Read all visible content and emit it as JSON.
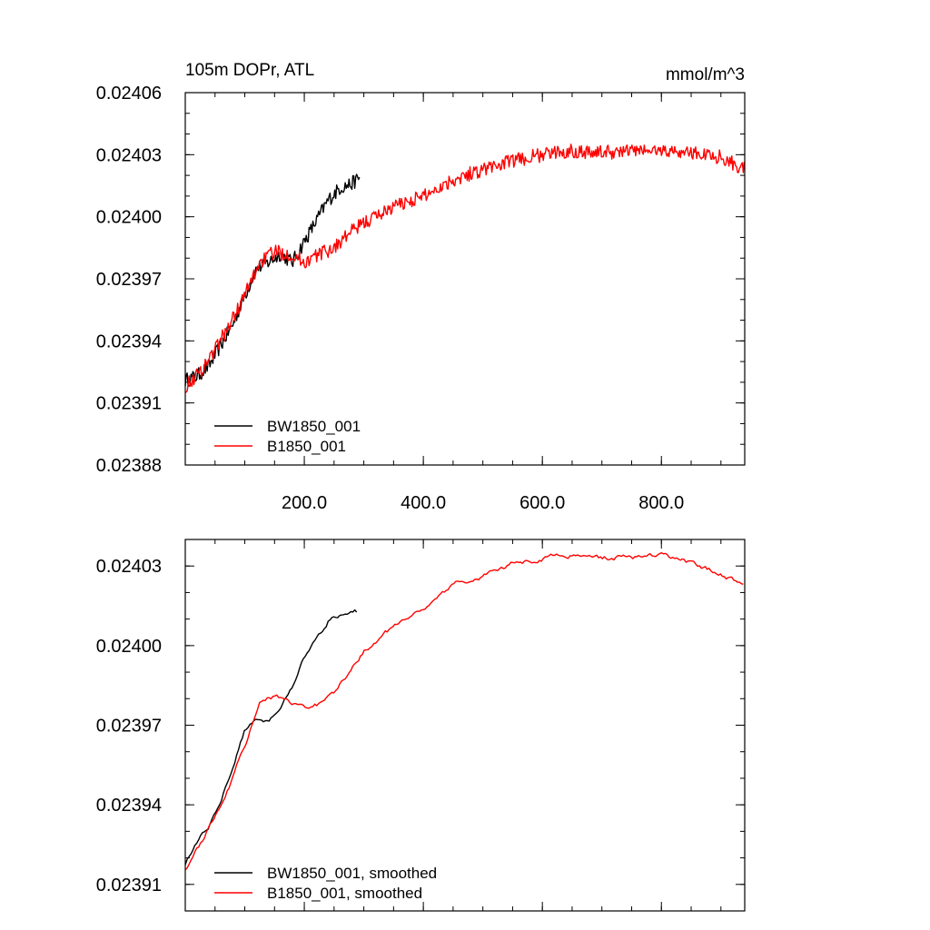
{
  "chart_data": [
    {
      "type": "line",
      "title": "105m DOPr, ATL",
      "units": "mmol/m^3",
      "xlim": [
        0,
        940
      ],
      "ylim": [
        0.02388,
        0.02406
      ],
      "yticks": [
        0.02388,
        0.02391,
        0.02394,
        0.02397,
        0.024,
        0.02403,
        0.02406
      ],
      "ytick_labels": [
        "0.02388",
        "0.02391",
        "0.02394",
        "0.02397",
        "0.02400",
        "0.02403",
        "0.02406"
      ],
      "xticks": [
        200,
        400,
        600,
        800
      ],
      "xtick_labels": [
        "200.0",
        "400.0",
        "600.0",
        "800.0"
      ],
      "legend": [
        "BW1850_001",
        "B1850_001"
      ],
      "series": [
        {
          "name": "BW1850_001",
          "color": "#000000",
          "x": [
            0,
            20,
            40,
            60,
            80,
            100,
            120,
            140,
            160,
            180,
            200,
            220,
            240,
            260,
            280,
            293
          ],
          "y": [
            0.023921,
            0.023923,
            0.023928,
            0.023938,
            0.023948,
            0.023962,
            0.023975,
            0.023978,
            0.023982,
            0.023978,
            0.023988,
            0.023998,
            0.024008,
            0.024014,
            0.024016,
            0.024019
          ]
        },
        {
          "name": "B1850_001",
          "color": "#ff0000",
          "x": [
            0,
            25,
            50,
            75,
            100,
            125,
            150,
            175,
            200,
            225,
            250,
            275,
            300,
            350,
            400,
            450,
            500,
            550,
            600,
            650,
            700,
            750,
            800,
            850,
            900,
            940
          ],
          "y": [
            0.023918,
            0.023925,
            0.023936,
            0.023948,
            0.023962,
            0.023978,
            0.023983,
            0.023982,
            0.023978,
            0.023982,
            0.023985,
            0.023992,
            0.023997,
            0.024005,
            0.02401,
            0.024018,
            0.024023,
            0.024027,
            0.02403,
            0.024032,
            0.024031,
            0.024032,
            0.024032,
            0.024031,
            0.024029,
            0.024023
          ]
        }
      ]
    },
    {
      "type": "line",
      "xlim": [
        0,
        940
      ],
      "ylim": [
        0.0239,
        0.02404
      ],
      "yticks": [
        0.02391,
        0.02394,
        0.02397,
        0.024,
        0.02403
      ],
      "ytick_labels": [
        "0.02391",
        "0.02394",
        "0.02397",
        "0.02400",
        "0.02403"
      ],
      "xticks": [
        200,
        400,
        600,
        800
      ],
      "legend": [
        "BW1850_001, smoothed",
        "B1850_001, smoothed"
      ],
      "series": [
        {
          "name": "BW1850_001, smoothed",
          "color": "#000000",
          "x": [
            0,
            20,
            40,
            60,
            80,
            100,
            120,
            140,
            160,
            180,
            200,
            220,
            240,
            260,
            280,
            290
          ],
          "y": [
            0.023918,
            0.023926,
            0.023932,
            0.023942,
            0.023955,
            0.023968,
            0.023973,
            0.023972,
            0.023978,
            0.023985,
            0.023995,
            0.024002,
            0.024009,
            0.024012,
            0.024013,
            0.024013
          ]
        },
        {
          "name": "B1850_001, smoothed",
          "color": "#ff0000",
          "x": [
            0,
            25,
            50,
            75,
            100,
            125,
            150,
            175,
            200,
            225,
            250,
            275,
            300,
            350,
            400,
            450,
            500,
            550,
            600,
            650,
            700,
            750,
            800,
            850,
            900,
            940
          ],
          "y": [
            0.023916,
            0.023925,
            0.023936,
            0.023948,
            0.023962,
            0.02398,
            0.023981,
            0.023979,
            0.023976,
            0.023978,
            0.023982,
            0.02399,
            0.023998,
            0.024007,
            0.024014,
            0.024023,
            0.024026,
            0.024031,
            0.024033,
            0.024034,
            0.024033,
            0.024033,
            0.024034,
            0.024031,
            0.024027,
            0.024023
          ]
        }
      ]
    }
  ]
}
